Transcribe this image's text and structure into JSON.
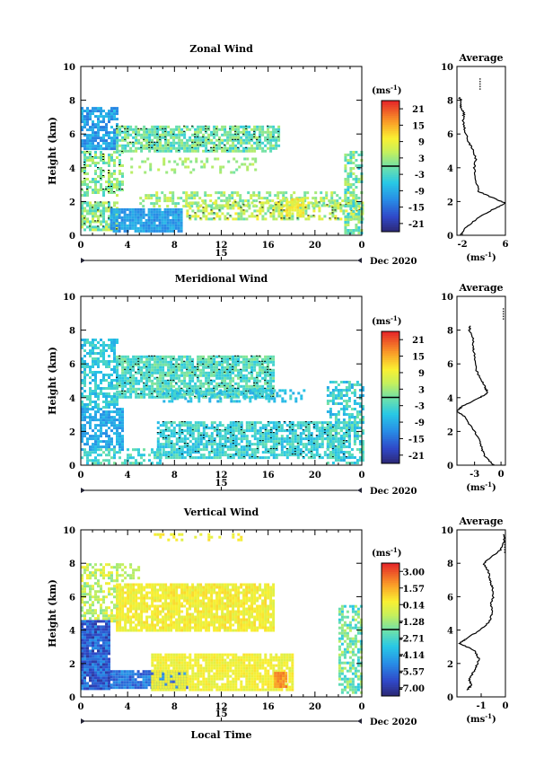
{
  "chart_data": [
    {
      "type": "heatmap",
      "title": "Zonal Wind",
      "ylabel": "Height (km)",
      "xlabel": "",
      "xticks": [
        "0",
        "4",
        "8",
        "12",
        "16",
        "20",
        "0"
      ],
      "yticks": [
        "0",
        "2",
        "4",
        "6",
        "8",
        "10"
      ],
      "ylim": [
        0,
        10
      ],
      "xlim": [
        0,
        24
      ],
      "day_label": "15",
      "month_label": "Dec 2020",
      "colorbar": {
        "unit": "(ms",
        "unit_exp": "-1",
        "unit_close": ")",
        "ticks": [
          "21",
          "15",
          "9",
          "3",
          "-3",
          "-9",
          "-15",
          "-21"
        ],
        "range": [
          -24,
          24
        ]
      },
      "average": {
        "title": "Average",
        "xticks": [
          "-2",
          "6"
        ],
        "xlim": [
          -3,
          6
        ],
        "xlabel": "(ms",
        "xlabel_exp": "-1",
        "xlabel_close": ")",
        "yticks": [
          "0",
          "2",
          "4",
          "6",
          "8",
          "10"
        ]
      }
    },
    {
      "type": "heatmap",
      "title": "Meridional Wind",
      "ylabel": "Height (km)",
      "xlabel": "",
      "xticks": [
        "0",
        "4",
        "8",
        "12",
        "16",
        "20",
        "0"
      ],
      "yticks": [
        "0",
        "2",
        "4",
        "6",
        "8",
        "10"
      ],
      "ylim": [
        0,
        10
      ],
      "xlim": [
        0,
        24
      ],
      "day_label": "15",
      "month_label": "Dec 2020",
      "colorbar": {
        "unit": "(ms",
        "unit_exp": "-1",
        "unit_close": ")",
        "ticks": [
          "21",
          "15",
          "9",
          "3",
          "-3",
          "-9",
          "-15",
          "-21"
        ],
        "range": [
          -24,
          24
        ]
      },
      "average": {
        "title": "Average",
        "xticks": [
          "-3",
          "0"
        ],
        "xlim": [
          -5,
          0.5
        ],
        "xlabel": "(ms",
        "xlabel_exp": "-1",
        "xlabel_close": ")",
        "yticks": [
          "0",
          "2",
          "4",
          "6",
          "8",
          "10"
        ]
      }
    },
    {
      "type": "heatmap",
      "title": "Vertical Wind",
      "ylabel": "Height (km)",
      "xlabel": "Local Time",
      "xticks": [
        "0",
        "4",
        "8",
        "12",
        "16",
        "20",
        "0"
      ],
      "yticks": [
        "0",
        "2",
        "4",
        "6",
        "8",
        "10"
      ],
      "ylim": [
        0,
        10
      ],
      "xlim": [
        0,
        24
      ],
      "day_label": "15",
      "month_label": "Dec 2020",
      "colorbar": {
        "unit": "(ms",
        "unit_exp": "-1",
        "unit_close": ")",
        "ticks": [
          "3.00",
          "1.57",
          "0.14",
          "-1.28",
          "-2.71",
          "-4.14",
          "-5.57",
          "-7.00"
        ],
        "range": [
          -8,
          4
        ]
      },
      "average": {
        "title": "Average",
        "xticks": [
          "-1",
          "0"
        ],
        "xlim": [
          -2,
          0
        ],
        "xlabel": "(ms",
        "xlabel_exp": "-1",
        "xlabel_close": ")",
        "yticks": [
          "0",
          "2",
          "4",
          "6",
          "8",
          "10"
        ]
      }
    }
  ]
}
